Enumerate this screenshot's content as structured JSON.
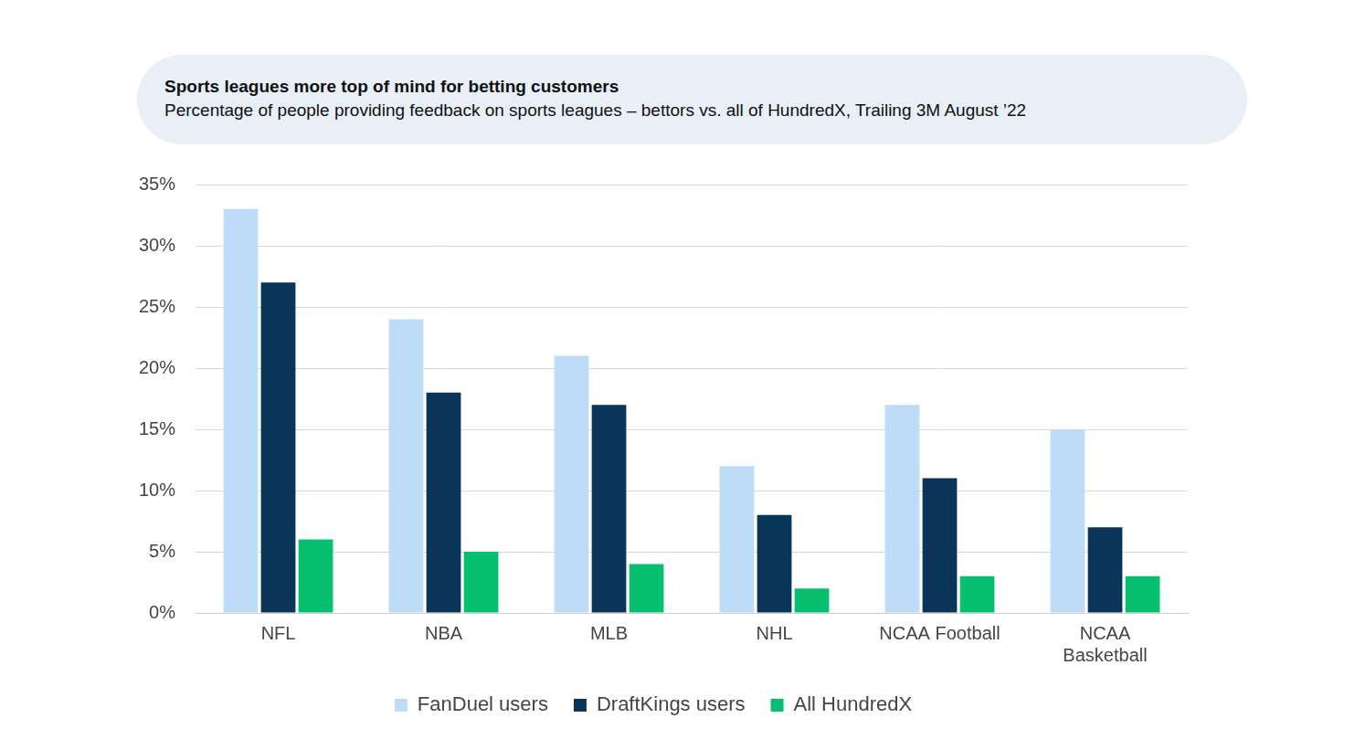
{
  "chart_data": {
    "type": "bar",
    "title": "Sports leagues more top of mind for betting customers",
    "subtitle": "Percentage of people providing feedback on sports leagues – bettors vs. all of HundredX, Trailing 3M August ’22",
    "categories": [
      "NFL",
      "NBA",
      "MLB",
      "NHL",
      "NCAA Football",
      "NCAA Basketball"
    ],
    "series": [
      {
        "name": "FanDuel users",
        "color": "#bcdcf7",
        "values": [
          33,
          24,
          21,
          12,
          17,
          15
        ]
      },
      {
        "name": "DraftKings users",
        "color": "#0b3558",
        "values": [
          27,
          18,
          17,
          8,
          11,
          7
        ]
      },
      {
        "name": "All HundredX",
        "color": "#06bf6f",
        "values": [
          6,
          5,
          4,
          2,
          3,
          3
        ]
      }
    ],
    "ylim": [
      0,
      35
    ],
    "yticks": [
      {
        "value": 0,
        "label": "0%"
      },
      {
        "value": 5,
        "label": "5%"
      },
      {
        "value": 10,
        "label": "10%"
      },
      {
        "value": 15,
        "label": "15%"
      },
      {
        "value": 20,
        "label": "20%"
      },
      {
        "value": 25,
        "label": "25%"
      },
      {
        "value": 30,
        "label": "30%"
      },
      {
        "value": 35,
        "label": "35%"
      }
    ],
    "grid": true,
    "legend": "bottom"
  }
}
